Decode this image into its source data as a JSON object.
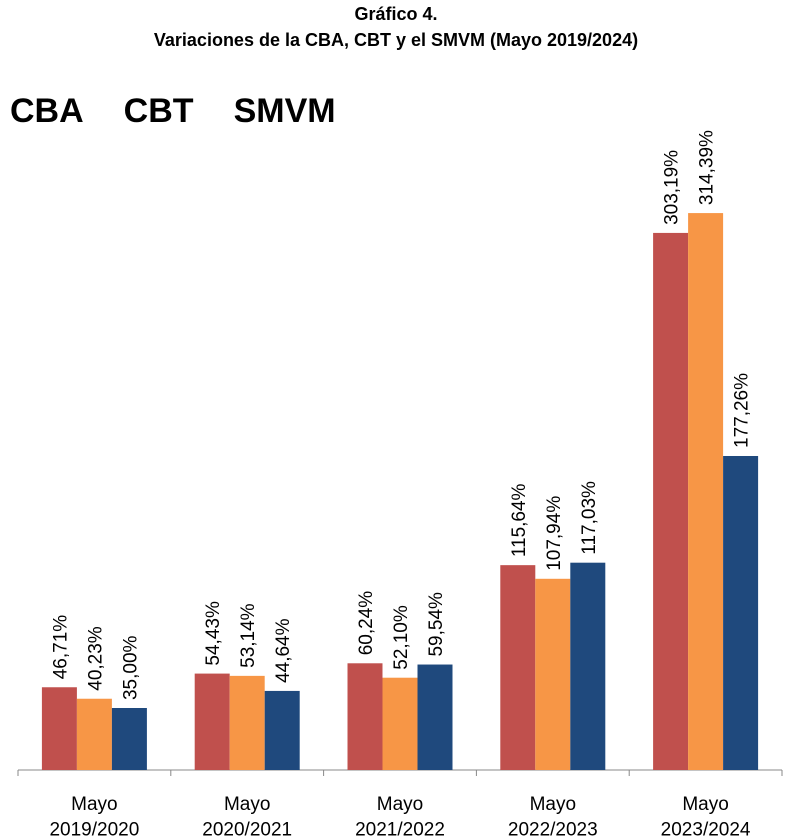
{
  "chart_data": {
    "type": "bar",
    "title": "Gráfico 4.",
    "subtitle": "Variaciones de la CBA, CBT y el SMVM (Mayo 2019/2024)",
    "categories": [
      "Mayo\n2019/2020",
      "Mayo\n2020/2021",
      "Mayo\n2021/2022",
      "Mayo\n2022/2023",
      "Mayo\n2023/2024"
    ],
    "series": [
      {
        "name": "CBA",
        "color": "#c0504d",
        "values": [
          46.71,
          54.43,
          60.24,
          115.64,
          303.19
        ],
        "value_labels": [
          "46,71%",
          "54,43%",
          "60,24%",
          "115,64%",
          "303,19%"
        ]
      },
      {
        "name": "CBT",
        "color": "#f79646",
        "values": [
          40.23,
          53.14,
          52.1,
          107.94,
          314.39
        ],
        "value_labels": [
          "40,23%",
          "53,14%",
          "52,10%",
          "107,94%",
          "314,39%"
        ]
      },
      {
        "name": "SMVM",
        "color": "#1f497d",
        "values": [
          35.0,
          44.64,
          59.54,
          117.03,
          177.26
        ],
        "value_labels": [
          "35,00%",
          "44,64%",
          "59,54%",
          "117,03%",
          "177,26%"
        ]
      }
    ],
    "ylim": [
      0,
      350
    ],
    "legend": "top-left"
  }
}
